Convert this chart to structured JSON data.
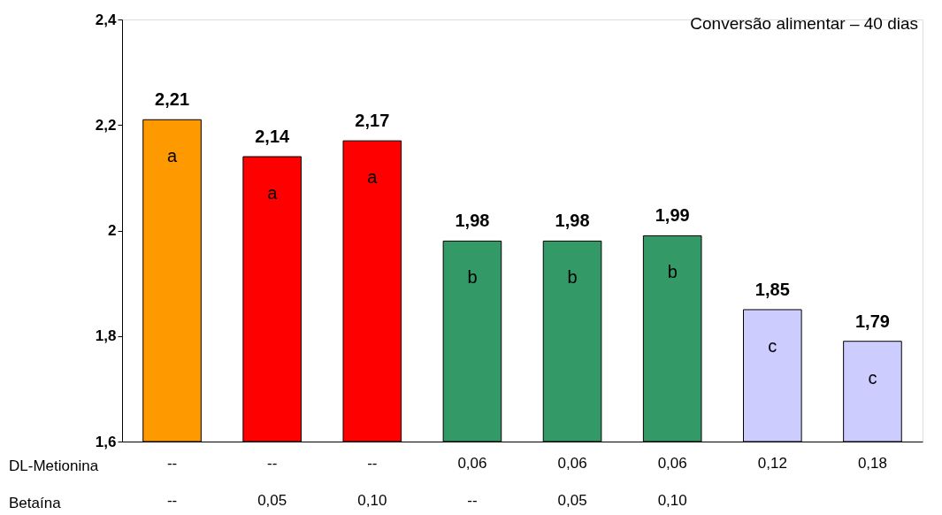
{
  "chart_data": {
    "type": "bar",
    "title": "Conversão alimentar – 40 dias",
    "categories": [
      "--\n--",
      "--\n0,05",
      "--\n0,10",
      "0,06\n--",
      "0,06\n0,05",
      "0,06\n0,10",
      "0,12\n",
      "0,18\n"
    ],
    "values": [
      2.21,
      2.14,
      2.17,
      1.98,
      1.98,
      1.99,
      1.85,
      1.79
    ],
    "colors": [
      "#ff9900",
      "#ff0000",
      "#ff0000",
      "#339966",
      "#339966",
      "#339966",
      "#ccccff",
      "#ccccff"
    ],
    "value_labels": [
      "2,21",
      "2,14",
      "2,17",
      "1,98",
      "1,98",
      "1,99",
      "1,85",
      "1,79"
    ],
    "ylim": [
      1.6,
      2.4
    ],
    "yticks": [
      {
        "value": 1.6,
        "label": "1,6"
      },
      {
        "value": 1.8,
        "label": "1,8"
      },
      {
        "value": 2,
        "label": "2"
      },
      {
        "value": 2.2,
        "label": "2,2"
      },
      {
        "value": 2.4,
        "label": "2,4"
      }
    ],
    "grid": false,
    "annotations": [
      "DL-Metionina",
      "Betaína",
      "a",
      "a",
      "a",
      "b",
      "b",
      "b",
      "c",
      "c"
    ]
  }
}
